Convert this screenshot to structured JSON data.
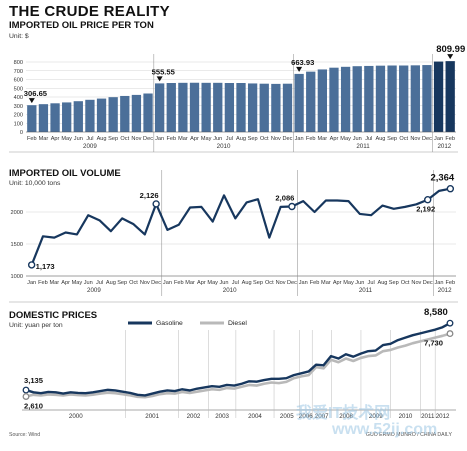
{
  "header": {
    "title": "THE CRUDE REALITY"
  },
  "chart_data": [
    {
      "type": "bar",
      "title": "IMPORTED OIL PRICE PER TON",
      "ylabel": "Unit: $",
      "ylim": [
        0,
        800
      ],
      "yticks": [
        0,
        100,
        200,
        300,
        400,
        500,
        600,
        700,
        800
      ],
      "categories": [
        "Feb",
        "Mar",
        "Apr",
        "May",
        "Jun",
        "Jul",
        "Aug",
        "Sep",
        "Oct",
        "Nov",
        "Dec",
        "Jan",
        "Feb",
        "Mar",
        "Apr",
        "May",
        "Jun",
        "Jul",
        "Aug",
        "Sep",
        "Oct",
        "Nov",
        "Dec",
        "Jan",
        "Feb",
        "Mar",
        "Apr",
        "May",
        "Jun",
        "Jul",
        "Aug",
        "Sep",
        "Oct",
        "Nov",
        "Dec",
        "Jan",
        "Feb"
      ],
      "years": [
        "2009",
        "2010",
        "2011",
        "2012"
      ],
      "values": [
        306.65,
        318,
        328,
        338,
        352,
        368,
        382,
        398,
        412,
        424,
        440,
        555.55,
        560,
        562,
        563,
        562,
        562,
        560,
        560,
        555,
        552,
        550,
        552,
        663.93,
        690,
        715,
        735,
        745,
        752,
        755,
        758,
        760,
        760,
        762,
        765,
        805,
        809.99
      ],
      "labels": {
        "0": "306.65",
        "11": "555.55",
        "23": "663.93",
        "36": "809.99"
      },
      "colors": {
        "bar": "#4b6f99",
        "highlight": "#17375e"
      }
    },
    {
      "type": "line",
      "title": "IMPORTED OIL VOLUME",
      "ylabel": "Unit: 10,000 tons",
      "ylim": [
        1000,
        2500
      ],
      "yticks": [
        1000,
        1500,
        2000
      ],
      "categories": [
        "Jan",
        "Feb",
        "Mar",
        "Apr",
        "May",
        "Jun",
        "Jul",
        "Aug",
        "Sep",
        "Oct",
        "Nov",
        "Dec",
        "Jan",
        "Feb",
        "Mar",
        "Apr",
        "May",
        "Jun",
        "Jul",
        "Aug",
        "Sep",
        "Oct",
        "Nov",
        "Dec",
        "Jan",
        "Feb",
        "Mar",
        "Apr",
        "May",
        "Jun",
        "Jul",
        "Aug",
        "Sep",
        "Oct",
        "Nov",
        "Dec",
        "Jan",
        "Feb"
      ],
      "years": [
        "2009",
        "2010",
        "2011",
        "2012"
      ],
      "values": [
        1173,
        1620,
        1600,
        1680,
        1650,
        1950,
        1870,
        1700,
        1900,
        1810,
        1650,
        2126,
        1720,
        1800,
        2070,
        2080,
        1850,
        2260,
        1900,
        2150,
        2200,
        1600,
        2080,
        2086,
        2170,
        2000,
        2180,
        2180,
        2170,
        1970,
        1950,
        2100,
        2050,
        2080,
        2120,
        2192,
        2330,
        2364
      ],
      "labels": {
        "0": "1,173",
        "11": "2,126",
        "23": "2,086",
        "35": "2,192",
        "37": "2,364"
      },
      "colors": {
        "line": "#17375e"
      }
    },
    {
      "type": "line",
      "title": "DOMESTIC PRICES",
      "ylabel": "Unit: yuan per ton",
      "years": [
        "2000",
        "2001",
        "2002",
        "2003",
        "2004",
        "2005",
        "2006",
        "2007",
        "2008",
        "2009",
        "2010",
        "2011",
        "2012"
      ],
      "series": [
        {
          "name": "Gasoline",
          "color": "#17375e",
          "values": [
            3135,
            2950,
            2880,
            2980,
            2950,
            2850,
            2950,
            2900,
            2880,
            2950,
            3050,
            3150,
            3100,
            3000,
            2900,
            2750,
            2700,
            2850,
            3000,
            3100,
            3050,
            3200,
            3100,
            3250,
            3350,
            3450,
            3400,
            3550,
            3500,
            3650,
            3850,
            3820,
            3950,
            4050,
            4050,
            4100,
            4350,
            4500,
            4650,
            5200,
            5150,
            5900,
            5700,
            6050,
            5850,
            6100,
            6300,
            6350,
            6800,
            6900,
            7200,
            7400,
            7600,
            7750,
            7900,
            8050,
            8250,
            8580
          ]
        },
        {
          "name": "Diesel",
          "color": "#b9b9b9",
          "values": [
            2610,
            2750,
            2700,
            2780,
            2750,
            2700,
            2780,
            2730,
            2700,
            2760,
            2850,
            2920,
            2880,
            2800,
            2700,
            2580,
            2550,
            2650,
            2800,
            2880,
            2850,
            2980,
            2900,
            3000,
            3100,
            3200,
            3150,
            3300,
            3250,
            3400,
            3550,
            3500,
            3650,
            3750,
            3700,
            3800,
            4100,
            4250,
            4350,
            5000,
            4900,
            5600,
            5400,
            5700,
            5500,
            5750,
            5900,
            5950,
            6300,
            6400,
            6600,
            6750,
            6950,
            7100,
            7250,
            7400,
            7550,
            7730
          ]
        }
      ],
      "labels": {
        "start_gasoline": "3,135",
        "start_diesel": "2,610",
        "end_gasoline": "8,580",
        "end_diesel": "7,730"
      }
    }
  ],
  "footer": {
    "source": "Source: Wind",
    "credit": "GUO ERMO MUNRO / CHINA DAILY"
  },
  "watermark": {
    "text": "我爱IT技术网",
    "url": "www.52ij.com"
  }
}
